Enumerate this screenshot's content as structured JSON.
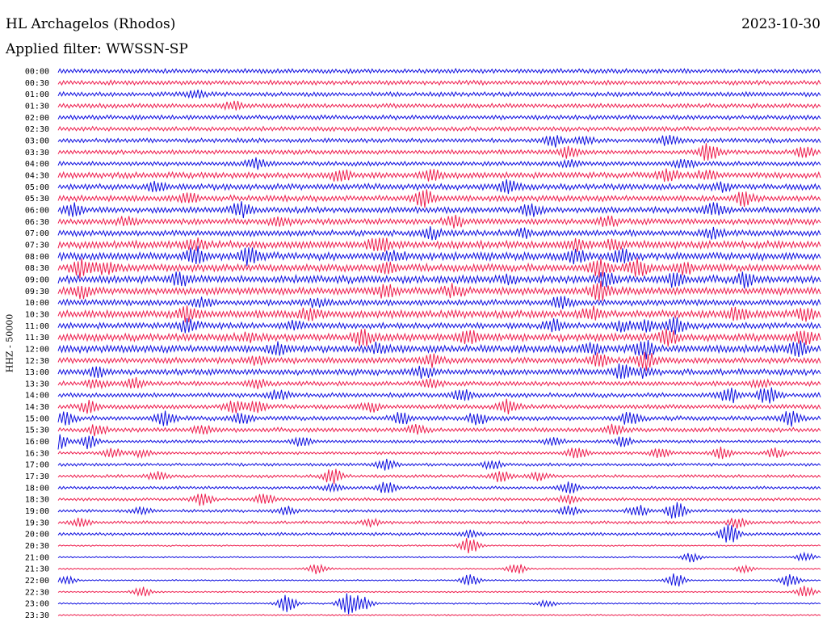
{
  "header": {
    "station": "HL Archagelos (Rhodos)",
    "date": "2023-10-30",
    "filter_label": "Applied filter: WWSSN-SP"
  },
  "colors": {
    "trace_a": "#1010e0",
    "trace_b": "#ee1f4f",
    "text": "#000000"
  },
  "chart_data": {
    "type": "line",
    "ylabel": "HHZ - 50000",
    "row_labels": [
      "00:00",
      "00:30",
      "01:00",
      "01:30",
      "02:00",
      "02:30",
      "03:00",
      "03:30",
      "04:00",
      "04:30",
      "05:00",
      "05:30",
      "06:00",
      "06:30",
      "07:00",
      "07:30",
      "08:00",
      "08:30",
      "09:00",
      "09:30",
      "10:00",
      "10:30",
      "11:00",
      "11:30",
      "12:00",
      "12:30",
      "13:00",
      "13:30",
      "14:00",
      "14:30",
      "15:00",
      "15:30",
      "16:00",
      "16:30",
      "17:00",
      "17:30",
      "18:00",
      "18:30",
      "19:00",
      "19:30",
      "20:00",
      "20:30",
      "21:00",
      "21:30",
      "22:00",
      "22:30",
      "23:00",
      "23:30"
    ],
    "row_colors": [
      "trace_a",
      "trace_b"
    ],
    "noise_level": [
      3,
      3,
      3,
      3,
      3,
      3,
      3,
      3,
      3,
      4,
      4,
      4,
      4,
      4,
      4,
      5,
      5,
      5,
      5,
      5,
      4,
      5,
      4,
      5,
      5,
      4,
      4,
      3,
      3,
      3,
      3,
      3,
      2,
      2,
      2,
      2,
      2,
      2,
      2,
      2,
      2,
      1,
      1,
      1,
      1,
      1,
      1,
      1
    ],
    "events": [
      [],
      [],
      [
        [
          0.18,
          4
        ]
      ],
      [
        [
          0.23,
          4
        ]
      ],
      [],
      [],
      [
        [
          0.65,
          6
        ],
        [
          0.69,
          4
        ],
        [
          0.8,
          5
        ]
      ],
      [
        [
          0.67,
          7
        ],
        [
          0.85,
          7
        ],
        [
          0.86,
          5
        ],
        [
          0.98,
          6
        ]
      ],
      [
        [
          0.26,
          6
        ],
        [
          0.67,
          4
        ],
        [
          0.82,
          5
        ]
      ],
      [
        [
          0.37,
          6
        ],
        [
          0.49,
          5
        ],
        [
          0.8,
          6
        ],
        [
          0.85,
          6
        ]
      ],
      [
        [
          0.13,
          5
        ],
        [
          0.59,
          7
        ],
        [
          0.87,
          4
        ]
      ],
      [
        [
          0.17,
          5
        ],
        [
          0.48,
          9
        ],
        [
          0.9,
          8
        ]
      ],
      [
        [
          0.02,
          6
        ],
        [
          0.24,
          8
        ],
        [
          0.62,
          8
        ],
        [
          0.86,
          7
        ]
      ],
      [
        [
          0.09,
          4
        ],
        [
          0.29,
          5
        ],
        [
          0.52,
          6
        ],
        [
          0.72,
          5
        ]
      ],
      [
        [
          0.49,
          6
        ],
        [
          0.61,
          4
        ],
        [
          0.86,
          5
        ]
      ],
      [
        [
          0.18,
          6
        ],
        [
          0.42,
          8
        ],
        [
          0.73,
          6
        ],
        [
          0.68,
          5
        ]
      ],
      [
        [
          0.18,
          9
        ],
        [
          0.25,
          9
        ],
        [
          0.44,
          5
        ],
        [
          0.68,
          7
        ],
        [
          0.74,
          8
        ]
      ],
      [
        [
          0.03,
          10
        ],
        [
          0.06,
          6
        ],
        [
          0.43,
          6
        ],
        [
          0.71,
          9
        ],
        [
          0.76,
          9
        ],
        [
          0.82,
          6
        ]
      ],
      [
        [
          0.16,
          6
        ],
        [
          0.59,
          5
        ],
        [
          0.72,
          8
        ],
        [
          0.81,
          7
        ],
        [
          0.9,
          7
        ]
      ],
      [
        [
          0.03,
          6
        ],
        [
          0.43,
          6
        ],
        [
          0.52,
          6
        ],
        [
          0.71,
          9
        ]
      ],
      [
        [
          0.19,
          5
        ],
        [
          0.34,
          5
        ],
        [
          0.66,
          6
        ]
      ],
      [
        [
          0.17,
          8
        ],
        [
          0.33,
          6
        ],
        [
          0.7,
          7
        ],
        [
          0.89,
          7
        ],
        [
          0.98,
          6
        ]
      ],
      [
        [
          0.17,
          8
        ],
        [
          0.31,
          5
        ],
        [
          0.65,
          6
        ],
        [
          0.74,
          5
        ],
        [
          0.77,
          7
        ],
        [
          0.81,
          9
        ]
      ],
      [
        [
          0.25,
          4
        ],
        [
          0.4,
          8
        ],
        [
          0.54,
          7
        ],
        [
          0.8,
          9
        ],
        [
          0.98,
          8
        ]
      ],
      [
        [
          0.29,
          6
        ],
        [
          0.42,
          5
        ],
        [
          0.7,
          5
        ],
        [
          0.77,
          9
        ],
        [
          0.97,
          7
        ]
      ],
      [
        [
          0.26,
          4
        ],
        [
          0.49,
          6
        ],
        [
          0.71,
          8
        ],
        [
          0.77,
          10
        ]
      ],
      [
        [
          0.05,
          5
        ],
        [
          0.48,
          6
        ],
        [
          0.74,
          8
        ],
        [
          0.77,
          5
        ]
      ],
      [
        [
          0.05,
          5
        ],
        [
          0.1,
          6
        ],
        [
          0.26,
          5
        ],
        [
          0.49,
          5
        ],
        [
          0.92,
          5
        ]
      ],
      [
        [
          0.29,
          6
        ],
        [
          0.53,
          7
        ],
        [
          0.88,
          9
        ],
        [
          0.93,
          10
        ]
      ],
      [
        [
          0.04,
          6
        ],
        [
          0.23,
          7
        ],
        [
          0.26,
          7
        ],
        [
          0.41,
          6
        ],
        [
          0.59,
          8
        ]
      ],
      [
        [
          0.01,
          7
        ],
        [
          0.14,
          8
        ],
        [
          0.24,
          7
        ],
        [
          0.45,
          6
        ],
        [
          0.55,
          7
        ],
        [
          0.75,
          7
        ],
        [
          0.96,
          8
        ]
      ],
      [
        [
          0.05,
          6
        ],
        [
          0.19,
          5
        ],
        [
          0.47,
          5
        ],
        [
          0.73,
          6
        ]
      ],
      [
        [
          0.0,
          9
        ],
        [
          0.04,
          8
        ],
        [
          0.32,
          7
        ],
        [
          0.65,
          6
        ],
        [
          0.74,
          6
        ]
      ],
      [
        [
          0.07,
          6
        ],
        [
          0.11,
          4
        ],
        [
          0.68,
          7
        ],
        [
          0.79,
          6
        ],
        [
          0.87,
          6
        ],
        [
          0.94,
          5
        ]
      ],
      [
        [
          0.43,
          6
        ],
        [
          0.57,
          5
        ]
      ],
      [
        [
          0.13,
          5
        ],
        [
          0.36,
          9
        ],
        [
          0.58,
          7
        ],
        [
          0.63,
          5
        ]
      ],
      [
        [
          0.36,
          4
        ],
        [
          0.43,
          7
        ],
        [
          0.67,
          7
        ]
      ],
      [
        [
          0.19,
          7
        ],
        [
          0.27,
          7
        ],
        [
          0.67,
          5
        ]
      ],
      [
        [
          0.11,
          4
        ],
        [
          0.3,
          5
        ],
        [
          0.67,
          6
        ],
        [
          0.76,
          7
        ],
        [
          0.81,
          10
        ]
      ],
      [
        [
          0.03,
          5
        ],
        [
          0.41,
          4
        ],
        [
          0.89,
          6
        ]
      ],
      [
        [
          0.54,
          4
        ],
        [
          0.88,
          11
        ]
      ],
      [
        [
          0.54,
          10
        ]
      ],
      [
        [
          0.83,
          6
        ],
        [
          0.98,
          5
        ]
      ],
      [
        [
          0.34,
          6
        ],
        [
          0.6,
          7
        ],
        [
          0.9,
          4
        ]
      ],
      [
        [
          0.01,
          5
        ],
        [
          0.54,
          7
        ],
        [
          0.81,
          8
        ],
        [
          0.96,
          8
        ]
      ],
      [
        [
          0.11,
          6
        ],
        [
          0.98,
          7
        ]
      ],
      [
        [
          0.3,
          10
        ],
        [
          0.38,
          12
        ],
        [
          0.4,
          8
        ],
        [
          0.64,
          4
        ]
      ],
      []
    ]
  }
}
